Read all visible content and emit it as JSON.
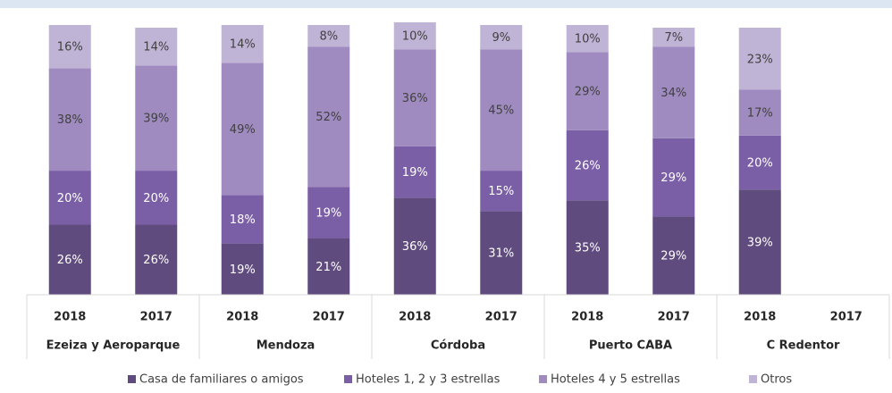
{
  "chart_data": {
    "type": "stacked_bar",
    "categories": [
      "2018",
      "2017",
      "2018",
      "2017",
      "2018",
      "2017",
      "2018",
      "2017",
      "2018",
      "2017"
    ],
    "groups": [
      "Ezeiza y Aeroparque",
      "Mendoza",
      "Córdoba",
      "Puerto CABA",
      "C Redentor"
    ],
    "ylim": [
      0,
      100
    ],
    "legend": "bottom",
    "series": [
      {
        "name": "Casa de familiares o amigos",
        "color": "#5f4b7e",
        "values": [
          26,
          26,
          19,
          21,
          36,
          31,
          35,
          29,
          39,
          null
        ],
        "value_labels": [
          "26%",
          "26%",
          "19%",
          "21%",
          "36%",
          "31%",
          "35%",
          "29%",
          "39%",
          null
        ]
      },
      {
        "name": "Hoteles 1, 2 y 3 estrellas",
        "color": "#7b5fa6",
        "values": [
          20,
          20,
          18,
          19,
          19,
          15,
          26,
          29,
          20,
          null
        ],
        "value_labels": [
          "20%",
          "20%",
          "18%",
          "19%",
          "19%",
          "15%",
          "26%",
          "29%",
          "20%",
          null
        ]
      },
      {
        "name": "Hoteles 4 y 5 estrellas",
        "color": "#9f8bbf",
        "values": [
          38,
          39,
          49,
          52,
          36,
          45,
          29,
          34,
          17,
          null
        ],
        "value_labels": [
          "38%",
          "39%",
          "49%",
          "52%",
          "36%",
          "45%",
          "29%",
          "34%",
          "17%",
          null
        ]
      },
      {
        "name": "Otros",
        "color": "#c0b4d6",
        "values": [
          16,
          14,
          14,
          8,
          10,
          9,
          10,
          7,
          23,
          null
        ],
        "value_labels": [
          "16%",
          "14%",
          "14%",
          "8%",
          "10%",
          "9%",
          "10%",
          "7%",
          "23%",
          null
        ]
      }
    ]
  }
}
